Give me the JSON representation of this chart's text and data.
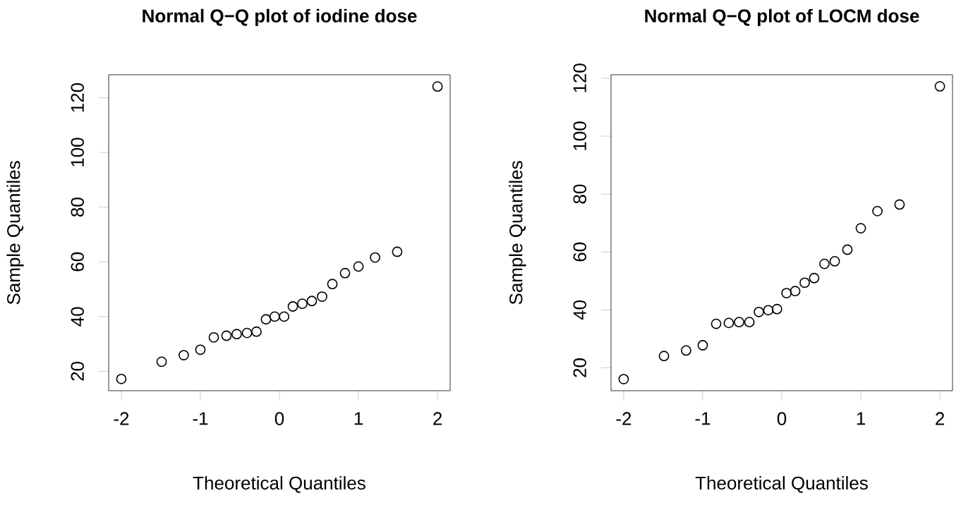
{
  "chart_data": [
    {
      "type": "scatter",
      "title": "Normal Q−Q plot of iodine dose",
      "xlabel": "Theoretical Quantiles",
      "ylabel": "Sample Quantiles",
      "marker": "circle",
      "color": "#000000",
      "x": [
        -2.0,
        -1.49,
        -1.21,
        -1.0,
        -0.83,
        -0.67,
        -0.54,
        -0.41,
        -0.29,
        -0.17,
        -0.06,
        0.06,
        0.17,
        0.29,
        0.41,
        0.54,
        0.67,
        0.83,
        1.0,
        1.21,
        1.49,
        2.0
      ],
      "values": [
        17.2,
        23.5,
        25.9,
        27.9,
        32.4,
        33.0,
        33.6,
        34.0,
        34.5,
        39.0,
        40.0,
        40.0,
        43.7,
        44.7,
        45.7,
        47.3,
        51.9,
        55.9,
        58.3,
        61.6,
        63.7,
        124.1
      ],
      "xlim": [
        -2.16,
        2.16
      ],
      "ylim": [
        12.9,
        128.4
      ],
      "xticks": [
        -2,
        -1,
        0,
        1,
        2
      ],
      "yticks": [
        20,
        40,
        60,
        80,
        100,
        120
      ]
    },
    {
      "type": "scatter",
      "title": "Normal Q−Q plot of LOCM dose",
      "xlabel": "Theoretical Quantiles",
      "ylabel": "Sample Quantiles",
      "marker": "circle",
      "color": "#000000",
      "x": [
        -2.0,
        -1.49,
        -1.21,
        -1.0,
        -0.83,
        -0.67,
        -0.54,
        -0.41,
        -0.29,
        -0.17,
        -0.06,
        0.06,
        0.17,
        0.29,
        0.41,
        0.54,
        0.67,
        0.83,
        1.0,
        1.21,
        1.49,
        2.0
      ],
      "values": [
        16.1,
        24.1,
        26.0,
        27.8,
        35.2,
        35.5,
        35.8,
        35.8,
        39.3,
        39.9,
        40.3,
        45.8,
        46.5,
        49.4,
        51.0,
        55.9,
        56.8,
        60.8,
        68.2,
        74.1,
        76.4,
        117.2
      ],
      "xlim": [
        -2.16,
        2.16
      ],
      "ylim": [
        12.1,
        121.2
      ],
      "xticks": [
        -2,
        -1,
        0,
        1,
        2
      ],
      "yticks": [
        20,
        40,
        60,
        80,
        100,
        120
      ]
    }
  ]
}
